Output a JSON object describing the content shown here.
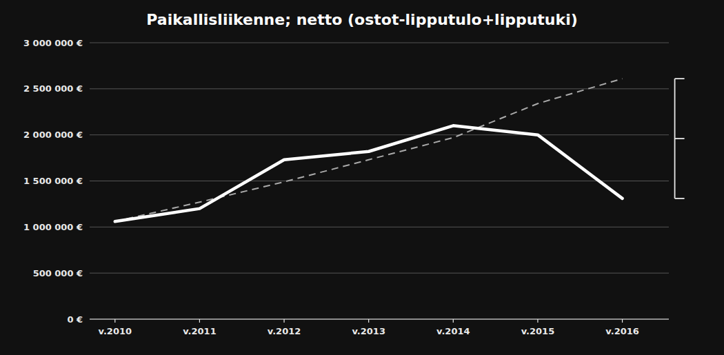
{
  "chart_data": {
    "type": "line",
    "title": "Paikallisliikenne; netto (ostot-lipputulo+lipputuki)",
    "categories": [
      "v.2010",
      "v.2011",
      "v.2012",
      "v.2013",
      "v.2014",
      "v.2015",
      "v.2016"
    ],
    "series": [
      {
        "color": "#aaaaaa",
        "line_style": "dashed",
        "values": [
          1060000,
          1270000,
          1490000,
          1730000,
          1970000,
          2340000,
          2610000
        ]
      },
      {
        "color": "#ffffff",
        "line_style": "solid",
        "values": [
          1060000,
          1200000,
          1730000,
          1820000,
          2100000,
          2000000,
          1310000
        ]
      }
    ],
    "ylim": [
      0,
      3000000
    ],
    "yticks": [
      {
        "value": 0,
        "label": "0 €"
      },
      {
        "value": 500000,
        "label": "500 000 €"
      },
      {
        "value": 1000000,
        "label": "1 000 000 €"
      },
      {
        "value": 1500000,
        "label": "1 500 000 €"
      },
      {
        "value": 2000000,
        "label": "2 000 000 €"
      },
      {
        "value": 2500000,
        "label": "2 500 000 €"
      },
      {
        "value": 3000000,
        "label": "3 000 000 €"
      }
    ],
    "grid": true,
    "bracket": {
      "top": 2610000,
      "mid": 1960000,
      "bottom": 1310000
    }
  }
}
